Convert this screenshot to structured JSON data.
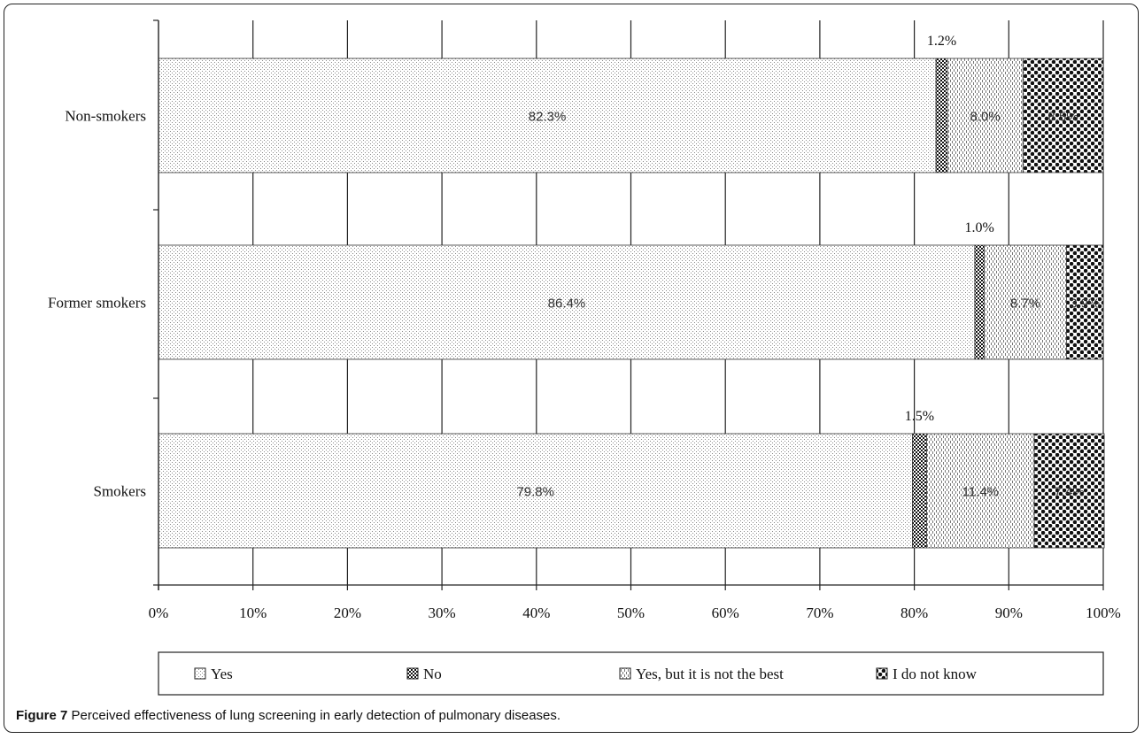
{
  "caption": {
    "label": "Figure 7",
    "text": "Perceived effectiveness of lung screening in early detection of pulmonary diseases."
  },
  "chart_data": {
    "type": "bar",
    "orientation": "horizontal",
    "stacked": true,
    "percent_axis": true,
    "categories": [
      "Non-smokers",
      "Former smokers",
      "Smokers"
    ],
    "series": [
      {
        "name": "Yes",
        "values": [
          82.3,
          86.4,
          79.8
        ],
        "labels": [
          "82.3%",
          "86.4%",
          "79.8%"
        ],
        "pattern": "fine-dots"
      },
      {
        "name": "No",
        "values": [
          1.2,
          1.0,
          1.5
        ],
        "labels": [
          "1.2%",
          "1.0%",
          "1.5%"
        ],
        "pattern": "dense-checker"
      },
      {
        "name": "Yes, but it is not the best",
        "values": [
          8.0,
          8.7,
          11.4
        ],
        "labels": [
          "8.0%",
          "8.7%",
          "11.4%"
        ],
        "pattern": "dashes"
      },
      {
        "name": "I do not know",
        "values": [
          8.5,
          3.9,
          7.4
        ],
        "labels": [
          "8.5%",
          "3.9%",
          "7.4%"
        ],
        "pattern": "big-dots"
      }
    ],
    "xlim": [
      0,
      100
    ],
    "x_ticks": [
      "0%",
      "10%",
      "20%",
      "30%",
      "40%",
      "50%",
      "60%",
      "70%",
      "80%",
      "90%",
      "100%"
    ],
    "grid": true,
    "legend_position": "bottom"
  }
}
